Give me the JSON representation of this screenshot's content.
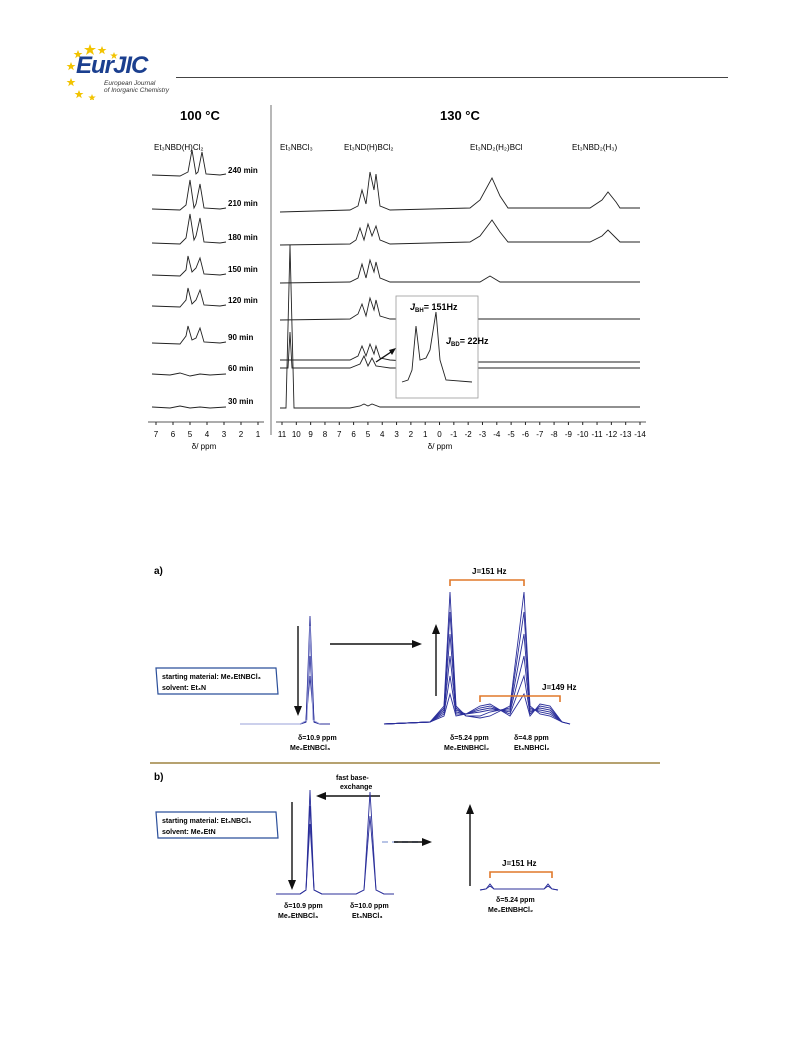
{
  "header": {
    "logo_text": "EurJIC",
    "logo_subtitle_1": "European Journal",
    "logo_subtitle_2": "of Inorganic Chemistry"
  },
  "figure1": {
    "left_title": "100 °C",
    "right_title": "130 °C",
    "left_species": "Et₃NBD(H)Cl₂",
    "right_species": [
      "Et₃NBCl₃",
      "Et₃ND(H)BCl₂",
      "Et₃ND₂(H₂)BCl",
      "Et₃NBD₂(H₃)"
    ],
    "time_labels": [
      "240 min",
      "210 min",
      "180 min",
      "150 min",
      "120 min",
      "90 min",
      "60 min",
      "30 min"
    ],
    "left_axis_ticks": [
      "7",
      "6",
      "5",
      "4",
      "3",
      "2",
      "1"
    ],
    "right_axis_ticks": [
      "11",
      "10",
      "9",
      "8",
      "7",
      "6",
      "5",
      "4",
      "3",
      "2",
      "1",
      "0",
      "-1",
      "-2",
      "-3",
      "-4",
      "-5",
      "-6",
      "-7",
      "-8",
      "-9",
      "-10",
      "-11",
      "-12",
      "-13",
      "-14"
    ],
    "axis_label": "δ/ ppm",
    "inset_jbh": "J",
    "inset_jbh_sub": "BH",
    "inset_jbh_value": "= 151Hz",
    "inset_jbd": "J",
    "inset_jbd_sub": "BD",
    "inset_jbd_value": "= 22Hz"
  },
  "figure2": {
    "panel_a": "a)",
    "panel_b": "b)",
    "a_box_line1": "starting material: Me₂EtNBCl₃",
    "a_box_line2": "solvent: Et₃N",
    "a_j_top": "J=151 Hz",
    "a_j_mid": "J=149 Hz",
    "a_label_left_1": "δ=10.9 ppm",
    "a_label_left_2": "Me₂EtNBCl₃",
    "a_label_mid_1": "δ=5.24 ppm",
    "a_label_mid_2": "Me₂EtNBHCl₂",
    "a_label_right_1": "δ=4.8 ppm",
    "a_label_right_2": "Et₃NBHCl₂",
    "b_box_line1": "starting material: Et₃NBCl₃",
    "b_box_line2": "solvent: Me₂EtN",
    "b_exchange_1": "fast base-",
    "b_exchange_2": "exchange",
    "b_label_left_1": "δ=10.9 ppm",
    "b_label_left_2": "Me₂EtNBCl₃",
    "b_label_mid_1": "δ=10.0 ppm",
    "b_label_mid_2": "Et₃NBCl₃",
    "b_j": "J=151 Hz",
    "b_label_right_1": "δ=5.24 ppm",
    "b_label_right_2": "Me₂EtNBHCl₂"
  },
  "colors": {
    "brand_blue": "#1b3f8f",
    "star_yellow": "#f2c300",
    "spectrum_blue": "#2b2f9a",
    "bracket_orange": "#e0782a",
    "divider_gold": "#8a6a1a"
  }
}
